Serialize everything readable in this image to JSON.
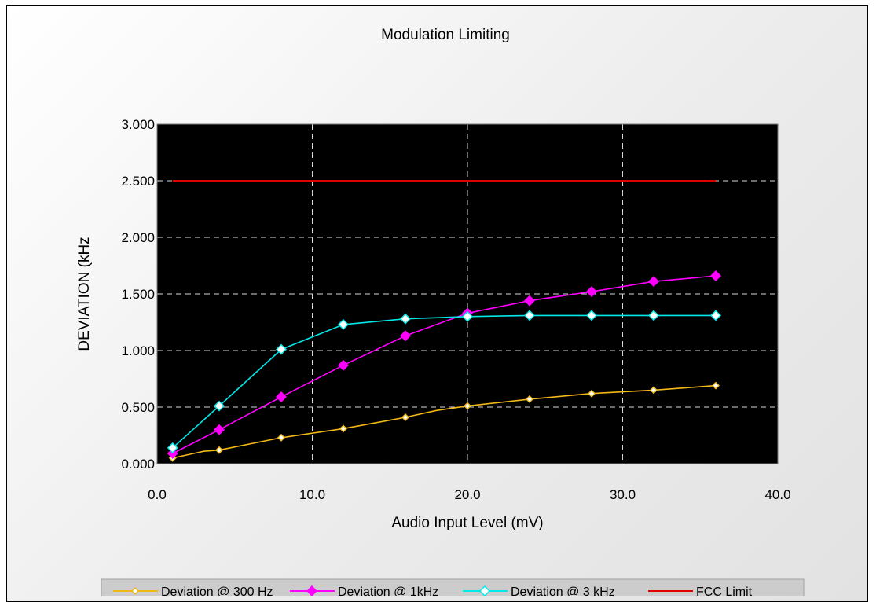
{
  "chart_data": {
    "type": "line",
    "title": "Modulation Limiting",
    "xlabel": "Audio Input Level (mV)",
    "ylabel": "DEVIATION (kHz",
    "xlim": [
      0,
      40
    ],
    "ylim": [
      0,
      3
    ],
    "xticks": [
      "0.0",
      "10.0",
      "20.0",
      "30.0",
      "40.0"
    ],
    "yticks": [
      "0.000",
      "0.500",
      "1.000",
      "1.500",
      "2.000",
      "2.500",
      "3.000"
    ],
    "grid": true,
    "legend_position": "bottom",
    "background": "#000000",
    "series": [
      {
        "name": "Deviation @ 300 Hz",
        "color": "#f2b817",
        "marker": "diamond-open-small",
        "x": [
          1,
          2,
          3,
          4,
          8,
          12,
          16,
          18,
          20,
          24,
          28,
          32,
          36
        ],
        "y": [
          0.05,
          0.08,
          0.11,
          0.12,
          0.23,
          0.31,
          0.41,
          0.47,
          0.51,
          0.57,
          0.62,
          0.65,
          0.69
        ],
        "marked": [
          true,
          false,
          false,
          true,
          true,
          true,
          true,
          false,
          true,
          true,
          true,
          true,
          true
        ]
      },
      {
        "name": "Deviation @ 1kHz",
        "color": "#ff00ff",
        "marker": "diamond-filled",
        "x": [
          1,
          4,
          8,
          12,
          16,
          20,
          24,
          28,
          32,
          36
        ],
        "y": [
          0.09,
          0.3,
          0.59,
          0.87,
          1.13,
          1.33,
          1.44,
          1.52,
          1.61,
          1.66
        ],
        "marked": [
          true,
          true,
          true,
          true,
          true,
          true,
          true,
          true,
          true,
          true
        ]
      },
      {
        "name": "Deviation @ 3 kHz",
        "color": "#00e8e8",
        "marker": "diamond-open",
        "x": [
          1,
          4,
          8,
          12,
          16,
          20,
          24,
          28,
          32,
          36
        ],
        "y": [
          0.14,
          0.51,
          1.01,
          1.23,
          1.28,
          1.3,
          1.31,
          1.31,
          1.31,
          1.31
        ],
        "marked": [
          true,
          true,
          true,
          true,
          true,
          true,
          true,
          true,
          true,
          true
        ]
      },
      {
        "name": "FCC Limit",
        "color": "#e00000",
        "marker": "none",
        "x": [
          1,
          36
        ],
        "y": [
          2.5,
          2.5
        ],
        "marked": [
          false,
          false
        ]
      }
    ]
  }
}
